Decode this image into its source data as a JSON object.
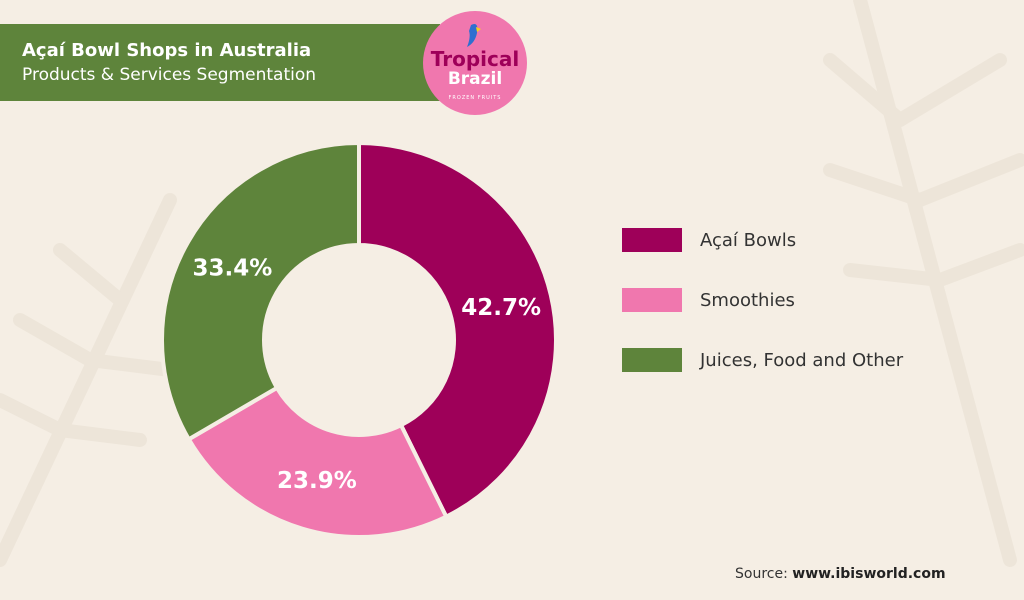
{
  "header": {
    "title": "Açaí Bowl Shops in Australia",
    "subtitle": "Products & Services Segmentation"
  },
  "logo": {
    "line1": "Tropical",
    "line2": "Brazil",
    "tagline": "FROZEN FRUITS"
  },
  "source": {
    "label": "Source:",
    "value": "www.ibisworld.com"
  },
  "chart_data": {
    "type": "pie",
    "title": "Açaí Bowl Shops in Australia — Products & Services Segmentation",
    "categories": [
      "Açaí Bowls",
      "Smoothies",
      "Juices, Food and Other"
    ],
    "values": [
      42.7,
      23.9,
      33.4
    ],
    "labels": [
      "42.7%",
      "23.9%",
      "33.4%"
    ],
    "colors": [
      "#9e0059",
      "#f077ae",
      "#5e843b"
    ],
    "donut": true,
    "legend": "right"
  }
}
